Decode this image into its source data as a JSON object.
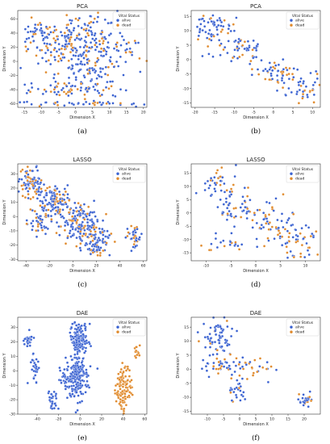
{
  "colors": {
    "alive": "#3a62d1",
    "dead": "#e08a2c"
  },
  "chart_data": [
    {
      "type": "scatter",
      "title": "PCA",
      "caption": "(a)",
      "xlabel": "Dimension X",
      "ylabel": "Dimension Y",
      "xlim": [
        -17,
        21
      ],
      "ylim": [
        -65,
        72
      ],
      "xticks": [
        "-15",
        "-10",
        "-5",
        "0",
        "5",
        "10",
        "15",
        "20"
      ],
      "xtickvals": [
        -15,
        -10,
        -5,
        0,
        5,
        10,
        15,
        20
      ],
      "yticks": [
        "60",
        "40",
        "20",
        "0",
        "-20",
        "-40",
        "-60"
      ],
      "ytickvals": [
        60,
        40,
        20,
        0,
        -20,
        -40,
        -60
      ],
      "legend": {
        "title": "Vital Status",
        "entries": [
          "alive",
          "dead"
        ],
        "placement": "top-right"
      },
      "clusters": [
        {
          "cx": 0,
          "cy": 25,
          "sx": 7,
          "sy": 20,
          "n": 260,
          "dead_frac": 0.28
        },
        {
          "cx": -2,
          "cy": -40,
          "sx": 8,
          "sy": 6,
          "n": 70,
          "dead_frac": 0.3
        },
        {
          "cx": 5,
          "cy": -10,
          "sx": 4,
          "sy": 12,
          "n": 60,
          "dead_frac": 0.2
        },
        {
          "cx": -10,
          "cy": 40,
          "sx": 3,
          "sy": 8,
          "n": 35,
          "dead_frac": 0.3
        },
        {
          "cx": 0,
          "cy": -60,
          "sx": 9,
          "sy": 2,
          "n": 45,
          "dead_frac": 0.3
        },
        {
          "cx": 15,
          "cy": 15,
          "sx": 2,
          "sy": 10,
          "n": 18,
          "dead_frac": 0.3
        }
      ]
    },
    {
      "type": "scatter",
      "title": "PCA",
      "caption": "(b)",
      "xlabel": "Dimension X",
      "ylabel": "Dimension Y",
      "xlim": [
        -21,
        12
      ],
      "ylim": [
        -16.5,
        17
      ],
      "xticks": [
        "-20",
        "-15",
        "-10",
        "-5",
        "0",
        "5",
        "10"
      ],
      "xtickvals": [
        -20,
        -15,
        -10,
        -5,
        0,
        5,
        10
      ],
      "yticks": [
        "15",
        "10",
        "5",
        "0",
        "-5",
        "-10",
        "-15"
      ],
      "ytickvals": [
        15,
        10,
        5,
        0,
        -5,
        -10,
        -15
      ],
      "legend": {
        "title": "Vital Status",
        "entries": [
          "alive",
          "dead"
        ],
        "placement": "top-right"
      },
      "clusters": [
        {
          "cx": -15,
          "cy": 11,
          "sx": 3,
          "sy": 2.5,
          "n": 55,
          "dead_frac": 0.2
        },
        {
          "cx": -8,
          "cy": 4,
          "sx": 3,
          "sy": 2.5,
          "n": 55,
          "dead_frac": 0.3
        },
        {
          "cx": 0,
          "cy": -4,
          "sx": 3,
          "sy": 2.2,
          "n": 50,
          "dead_frac": 0.3
        },
        {
          "cx": 7,
          "cy": -10,
          "sx": 3,
          "sy": 2.5,
          "n": 45,
          "dead_frac": 0.25
        }
      ]
    },
    {
      "type": "scatter",
      "title": "LASSO",
      "caption": "(c)",
      "xlabel": "Dimension X",
      "ylabel": "Dimension Y",
      "xlim": [
        -47,
        63
      ],
      "ylim": [
        -31,
        37
      ],
      "xticks": [
        "-40",
        "-20",
        "0",
        "20",
        "40",
        "60"
      ],
      "xtickvals": [
        -40,
        -20,
        0,
        20,
        40,
        60
      ],
      "yticks": [
        "30",
        "20",
        "10",
        "0",
        "-10",
        "-20",
        "-30"
      ],
      "ytickvals": [
        30,
        20,
        10,
        0,
        -10,
        -20,
        -30
      ],
      "legend": {
        "title": "Vital Status",
        "entries": [
          "alive",
          "dead"
        ],
        "placement": "top-right"
      },
      "clusters": [
        {
          "cx": -35,
          "cy": 24,
          "sx": 5,
          "sy": 5,
          "n": 90,
          "dead_frac": 0.3
        },
        {
          "cx": -15,
          "cy": 10,
          "sx": 7,
          "sy": 6,
          "n": 140,
          "dead_frac": 0.25
        },
        {
          "cx": 5,
          "cy": -5,
          "sx": 8,
          "sy": 7,
          "n": 150,
          "dead_frac": 0.25
        },
        {
          "cx": 20,
          "cy": -18,
          "sx": 6,
          "sy": 5,
          "n": 90,
          "dead_frac": 0.3
        },
        {
          "cx": -30,
          "cy": -5,
          "sx": 4,
          "sy": 6,
          "n": 40,
          "dead_frac": 0.2
        },
        {
          "cx": 52,
          "cy": -15,
          "sx": 4,
          "sy": 3,
          "n": 40,
          "dead_frac": 0.3
        }
      ]
    },
    {
      "type": "scatter",
      "title": "LASSO",
      "caption": "(d)",
      "xlabel": "Dimension X",
      "ylabel": "Dimension Y",
      "xlim": [
        -13,
        13
      ],
      "ylim": [
        -18,
        18.5
      ],
      "xticks": [
        "-10",
        "-5",
        "0",
        "5",
        "10"
      ],
      "xtickvals": [
        -10,
        -5,
        0,
        5,
        10
      ],
      "yticks": [
        "15",
        "10",
        "5",
        "0",
        "-5",
        "-10",
        "-15"
      ],
      "ytickvals": [
        15,
        10,
        5,
        0,
        -5,
        -10,
        -15
      ],
      "legend": {
        "title": "Vital Status",
        "entries": [
          "alive",
          "dead"
        ],
        "placement": "top-right"
      },
      "clusters": [
        {
          "cx": -8,
          "cy": 12,
          "sx": 2,
          "sy": 3,
          "n": 35,
          "dead_frac": 0.35
        },
        {
          "cx": -4,
          "cy": 2,
          "sx": 2.5,
          "sy": 4,
          "n": 55,
          "dead_frac": 0.25
        },
        {
          "cx": 3,
          "cy": -3,
          "sx": 2.5,
          "sy": 4,
          "n": 55,
          "dead_frac": 0.3
        },
        {
          "cx": 8,
          "cy": -10,
          "sx": 2.5,
          "sy": 3.5,
          "n": 55,
          "dead_frac": 0.3
        },
        {
          "cx": -6,
          "cy": -12,
          "sx": 3,
          "sy": 1.5,
          "n": 20,
          "dead_frac": 0.3
        }
      ]
    },
    {
      "type": "scatter",
      "title": "DAE",
      "caption": "(e)",
      "xlabel": "Dimension X",
      "ylabel": "Dimension Y",
      "xlim": [
        -58,
        62
      ],
      "ylim": [
        -30,
        37
      ],
      "xticks": [
        "-40",
        "-20",
        "0",
        "20",
        "40",
        "60"
      ],
      "xtickvals": [
        -40,
        -20,
        0,
        20,
        40,
        60
      ],
      "yticks": [
        "30",
        "20",
        "10",
        "0",
        "-10",
        "-20",
        "-30"
      ],
      "ytickvals": [
        30,
        20,
        10,
        0,
        -10,
        -20,
        -30
      ],
      "legend": {
        "title": "Vital Status",
        "entries": [
          "alive",
          "dead"
        ],
        "placement": "top-right"
      },
      "clusters": [
        {
          "cx": -1,
          "cy": 22,
          "sx": 4,
          "sy": 6,
          "n": 150,
          "dead_frac": 0
        },
        {
          "cx": -3,
          "cy": -5,
          "sx": 5,
          "sy": 8,
          "n": 190,
          "dead_frac": 0
        },
        {
          "cx": -48,
          "cy": 21,
          "sx": 2,
          "sy": 2,
          "n": 30,
          "dead_frac": 0
        },
        {
          "cx": -42,
          "cy": 0,
          "sx": 2,
          "sy": 5,
          "n": 30,
          "dead_frac": 0
        },
        {
          "cx": -25,
          "cy": -20,
          "sx": 2,
          "sy": 3,
          "n": 25,
          "dead_frac": 0
        },
        {
          "cx": -15,
          "cy": -5,
          "sx": 3,
          "sy": 3,
          "n": 20,
          "dead_frac": 0
        },
        {
          "cx": 40,
          "cy": -12,
          "sx": 4,
          "sy": 8,
          "n": 110,
          "dead_frac": 1
        },
        {
          "cx": 53,
          "cy": 13,
          "sx": 1.5,
          "sy": 2,
          "n": 15,
          "dead_frac": 1
        }
      ]
    },
    {
      "type": "scatter",
      "title": "DAE",
      "caption": "(f)",
      "xlabel": "Dimension X",
      "ylabel": "Dimension Y",
      "xlim": [
        -15,
        25
      ],
      "ylim": [
        -16,
        18.5
      ],
      "xticks": [
        "-10",
        "-5",
        "0",
        "5",
        "10",
        "15",
        "20"
      ],
      "xtickvals": [
        -10,
        -5,
        0,
        5,
        10,
        15,
        20
      ],
      "yticks": [
        "15",
        "10",
        "5",
        "0",
        "-5",
        "-10",
        "-15"
      ],
      "ytickvals": [
        15,
        10,
        5,
        0,
        -5,
        -10,
        -15
      ],
      "legend": {
        "title": "Vital Status",
        "entries": [
          "alive",
          "dead"
        ],
        "placement": "top-right"
      },
      "clusters": [
        {
          "cx": -7,
          "cy": 11,
          "sx": 2.5,
          "sy": 3,
          "n": 70,
          "dead_frac": 0.1
        },
        {
          "cx": -6,
          "cy": 2,
          "sx": 3,
          "sy": 2,
          "n": 35,
          "dead_frac": 0.2
        },
        {
          "cx": 3,
          "cy": 0,
          "sx": 4,
          "sy": 2,
          "n": 35,
          "dead_frac": 0.6
        },
        {
          "cx": -1,
          "cy": -8,
          "sx": 1.5,
          "sy": 2,
          "n": 25,
          "dead_frac": 0.15
        },
        {
          "cx": 21,
          "cy": -11,
          "sx": 1.2,
          "sy": 1.3,
          "n": 25,
          "dead_frac": 0.2
        }
      ]
    }
  ]
}
